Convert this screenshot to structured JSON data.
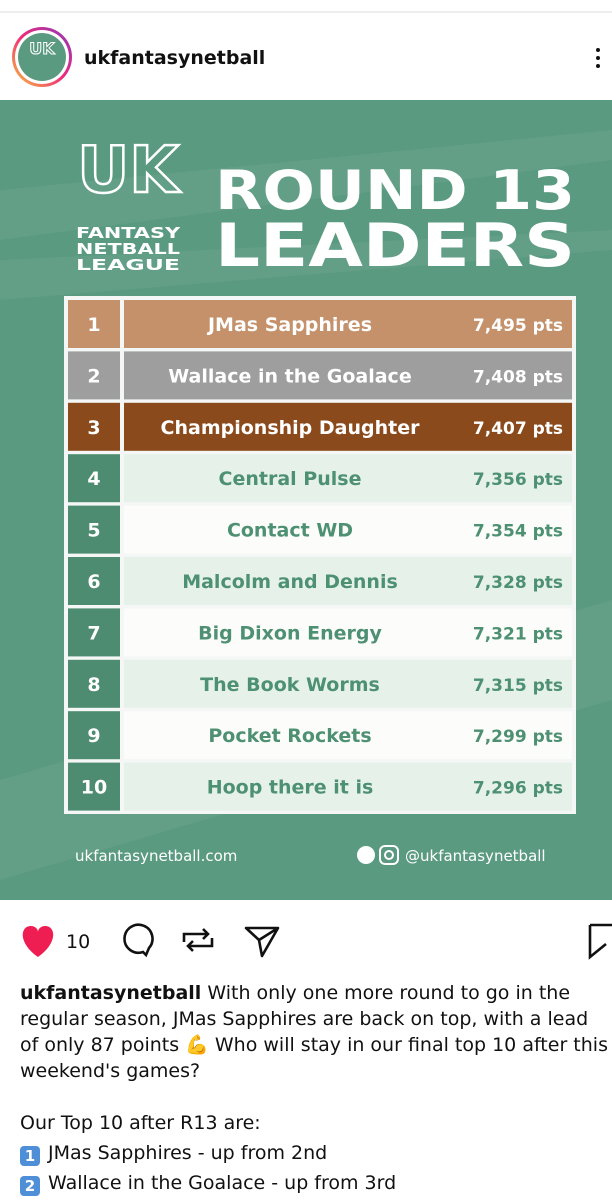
{
  "header": {
    "username": "ukfantasynetball"
  },
  "post": {
    "logo": {
      "mark": "UK",
      "lines": [
        "FANTASY",
        "NETBALL",
        "LEAGUE"
      ]
    },
    "title": [
      "ROUND 13",
      "LEADERS"
    ],
    "table": {
      "rows": [
        [
          "1",
          "JMas Sapphires",
          "7,495 pts"
        ],
        [
          "2",
          "Wallace in the Goalace",
          "7,408 pts"
        ],
        [
          "3",
          "Championship Daughter",
          "7,407 pts"
        ],
        [
          "4",
          "Central Pulse",
          "7,356 pts"
        ],
        [
          "5",
          "Contact WD",
          "7,354 pts"
        ],
        [
          "6",
          "Malcolm and Dennis",
          "7,328 pts"
        ],
        [
          "7",
          "Big Dixon Energy",
          "7,321 pts"
        ],
        [
          "8",
          "The Book Worms",
          "7,315 pts"
        ],
        [
          "9",
          "Pocket Rockets",
          "7,299 pts"
        ],
        [
          "10",
          "Hoop there it is",
          "7,296 pts"
        ]
      ]
    },
    "website": "ukfantasynetball.com",
    "handle": "@ukfantasynetball"
  },
  "actions": {
    "likes": "10"
  },
  "caption": {
    "username": "ukfantasynetball",
    "text": "With only one more round to go in the regular season, JMas Sapphires are back on top, with a lead of only 87 points 💪 Who will stay in our final top 10 after this weekend's games?",
    "list_heading": "Our Top 10 after R13 are:",
    "items": [
      {
        "rank": "1",
        "text": "JMas Sapphires - up from 2nd"
      },
      {
        "rank": "2",
        "text": "Wallace in the Goalace - up from 3rd"
      }
    ]
  }
}
